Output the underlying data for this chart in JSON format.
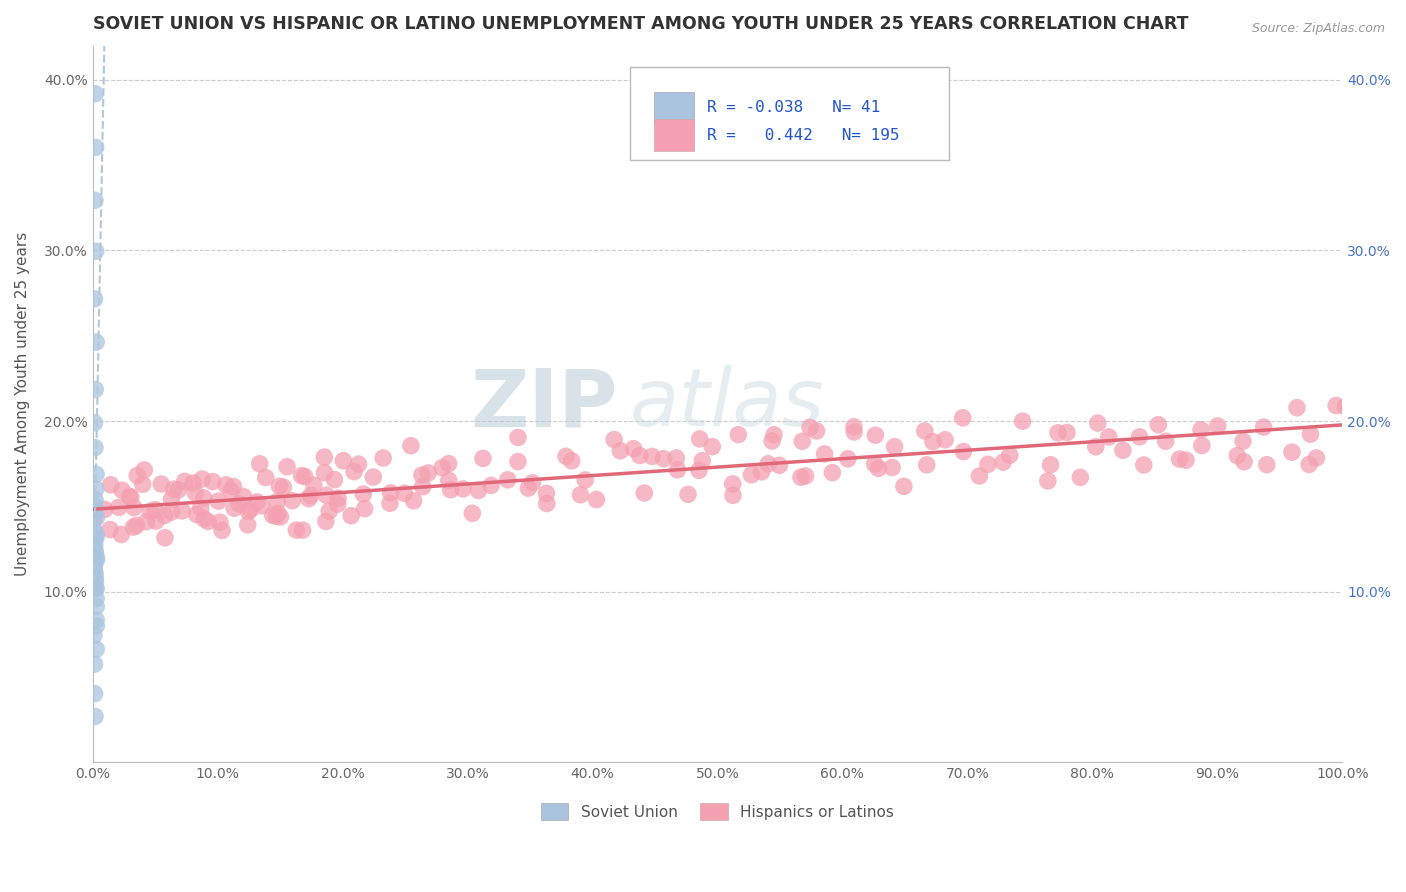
{
  "title": "SOVIET UNION VS HISPANIC OR LATINO UNEMPLOYMENT AMONG YOUTH UNDER 25 YEARS CORRELATION CHART",
  "source": "Source: ZipAtlas.com",
  "ylabel": "Unemployment Among Youth under 25 years",
  "xlim": [
    0,
    1.0
  ],
  "ylim": [
    0.0,
    0.42
  ],
  "xticks": [
    0.0,
    0.1,
    0.2,
    0.3,
    0.4,
    0.5,
    0.6,
    0.7,
    0.8,
    0.9,
    1.0
  ],
  "xticklabels": [
    "0.0%",
    "10.0%",
    "20.0%",
    "30.0%",
    "40.0%",
    "50.0%",
    "60.0%",
    "70.0%",
    "80.0%",
    "90.0%",
    "100.0%"
  ],
  "yticks": [
    0.0,
    0.1,
    0.2,
    0.3,
    0.4
  ],
  "yticklabels": [
    "",
    "10.0%",
    "20.0%",
    "30.0%",
    "40.0%"
  ],
  "legend_R1": "-0.038",
  "legend_N1": "41",
  "legend_R2": "0.442",
  "legend_N2": "195",
  "color_soviet": "#aac4e0",
  "color_hispanic": "#f4a0b0",
  "color_line_soviet": "#b0c8d8",
  "color_line_hispanic": "#e06878",
  "background_color": "#ffffff",
  "grid_color": "#cccccc",
  "watermark_zip": "ZIP",
  "watermark_atlas": "atlas",
  "soviet_x": [
    0.002,
    0.002,
    0.002,
    0.002,
    0.002,
    0.002,
    0.002,
    0.002,
    0.002,
    0.002,
    0.002,
    0.002,
    0.002,
    0.002,
    0.002,
    0.002,
    0.002,
    0.002,
    0.002,
    0.002,
    0.002,
    0.002,
    0.002,
    0.002,
    0.002,
    0.002,
    0.002,
    0.002,
    0.002,
    0.002,
    0.002,
    0.002,
    0.002,
    0.002,
    0.002,
    0.002,
    0.002,
    0.002,
    0.002,
    0.002,
    0.002
  ],
  "soviet_y": [
    0.39,
    0.36,
    0.33,
    0.3,
    0.27,
    0.245,
    0.22,
    0.2,
    0.185,
    0.17,
    0.16,
    0.155,
    0.15,
    0.145,
    0.142,
    0.138,
    0.135,
    0.132,
    0.13,
    0.128,
    0.125,
    0.122,
    0.12,
    0.118,
    0.115,
    0.113,
    0.11,
    0.108,
    0.106,
    0.104,
    0.102,
    0.1,
    0.095,
    0.09,
    0.085,
    0.08,
    0.075,
    0.068,
    0.058,
    0.042,
    0.028
  ],
  "hispanic_x": [
    0.005,
    0.01,
    0.015,
    0.02,
    0.025,
    0.03,
    0.035,
    0.04,
    0.045,
    0.05,
    0.055,
    0.06,
    0.065,
    0.07,
    0.075,
    0.08,
    0.085,
    0.09,
    0.095,
    0.1,
    0.105,
    0.11,
    0.115,
    0.12,
    0.125,
    0.13,
    0.135,
    0.14,
    0.145,
    0.15,
    0.155,
    0.16,
    0.165,
    0.17,
    0.175,
    0.18,
    0.185,
    0.19,
    0.195,
    0.2,
    0.21,
    0.22,
    0.23,
    0.24,
    0.25,
    0.26,
    0.27,
    0.28,
    0.29,
    0.3,
    0.31,
    0.32,
    0.33,
    0.34,
    0.35,
    0.36,
    0.37,
    0.38,
    0.39,
    0.4,
    0.415,
    0.43,
    0.445,
    0.46,
    0.475,
    0.49,
    0.505,
    0.52,
    0.535,
    0.55,
    0.565,
    0.58,
    0.595,
    0.61,
    0.625,
    0.64,
    0.655,
    0.67,
    0.685,
    0.7,
    0.715,
    0.73,
    0.745,
    0.76,
    0.775,
    0.79,
    0.805,
    0.82,
    0.835,
    0.85,
    0.865,
    0.88,
    0.895,
    0.91,
    0.925,
    0.94,
    0.955,
    0.97,
    0.985,
    1.0,
    0.008,
    0.012,
    0.018,
    0.022,
    0.028,
    0.032,
    0.038,
    0.042,
    0.048,
    0.052,
    0.058,
    0.062,
    0.068,
    0.072,
    0.078,
    0.082,
    0.088,
    0.092,
    0.098,
    0.102,
    0.108,
    0.112,
    0.118,
    0.122,
    0.128,
    0.132,
    0.138,
    0.142,
    0.148,
    0.152,
    0.158,
    0.162,
    0.168,
    0.172,
    0.178,
    0.182,
    0.188,
    0.192,
    0.198,
    0.202,
    0.212,
    0.222,
    0.232,
    0.242,
    0.252,
    0.262,
    0.272,
    0.282,
    0.292,
    0.302,
    0.32,
    0.34,
    0.36,
    0.38,
    0.4,
    0.42,
    0.44,
    0.46,
    0.48,
    0.5,
    0.52,
    0.54,
    0.56,
    0.58,
    0.6,
    0.62,
    0.64,
    0.66,
    0.68,
    0.7,
    0.72,
    0.74,
    0.76,
    0.78,
    0.8,
    0.82,
    0.84,
    0.86,
    0.88,
    0.9,
    0.92,
    0.94,
    0.96,
    0.98,
    1.0,
    0.45,
    0.47,
    0.49,
    0.51,
    0.53,
    0.55,
    0.57,
    0.59,
    0.61,
    0.63
  ],
  "hispanic_y": [
    0.145,
    0.15,
    0.14,
    0.155,
    0.135,
    0.148,
    0.152,
    0.142,
    0.158,
    0.145,
    0.138,
    0.155,
    0.148,
    0.142,
    0.158,
    0.135,
    0.15,
    0.145,
    0.138,
    0.155,
    0.148,
    0.142,
    0.155,
    0.148,
    0.162,
    0.145,
    0.158,
    0.142,
    0.165,
    0.15,
    0.145,
    0.155,
    0.148,
    0.162,
    0.145,
    0.175,
    0.155,
    0.148,
    0.162,
    0.145,
    0.168,
    0.155,
    0.178,
    0.148,
    0.165,
    0.158,
    0.172,
    0.148,
    0.165,
    0.158,
    0.155,
    0.168,
    0.158,
    0.175,
    0.162,
    0.152,
    0.165,
    0.175,
    0.162,
    0.168,
    0.175,
    0.182,
    0.168,
    0.175,
    0.162,
    0.175,
    0.168,
    0.182,
    0.168,
    0.178,
    0.172,
    0.185,
    0.175,
    0.182,
    0.168,
    0.178,
    0.175,
    0.182,
    0.175,
    0.185,
    0.178,
    0.182,
    0.188,
    0.175,
    0.185,
    0.178,
    0.185,
    0.182,
    0.188,
    0.185,
    0.182,
    0.188,
    0.185,
    0.192,
    0.188,
    0.185,
    0.192,
    0.188,
    0.192,
    0.195,
    0.155,
    0.148,
    0.145,
    0.158,
    0.148,
    0.155,
    0.142,
    0.162,
    0.148,
    0.155,
    0.148,
    0.162,
    0.148,
    0.155,
    0.142,
    0.158,
    0.148,
    0.155,
    0.142,
    0.158,
    0.148,
    0.155,
    0.162,
    0.148,
    0.165,
    0.155,
    0.162,
    0.148,
    0.165,
    0.155,
    0.162,
    0.148,
    0.165,
    0.155,
    0.168,
    0.158,
    0.165,
    0.155,
    0.168,
    0.158,
    0.165,
    0.172,
    0.162,
    0.168,
    0.158,
    0.172,
    0.162,
    0.168,
    0.158,
    0.172,
    0.168,
    0.178,
    0.168,
    0.178,
    0.172,
    0.182,
    0.172,
    0.178,
    0.168,
    0.178,
    0.175,
    0.182,
    0.175,
    0.185,
    0.178,
    0.185,
    0.178,
    0.185,
    0.182,
    0.188,
    0.182,
    0.188,
    0.185,
    0.192,
    0.188,
    0.195,
    0.192,
    0.195,
    0.192,
    0.198,
    0.195,
    0.198,
    0.195,
    0.202,
    0.205,
    0.175,
    0.178,
    0.172,
    0.178,
    0.175,
    0.182,
    0.178,
    0.185,
    0.182,
    0.188
  ]
}
